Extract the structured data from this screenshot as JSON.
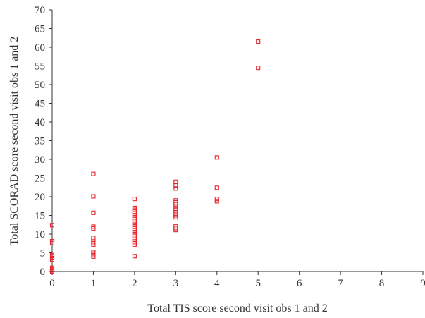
{
  "chart_data": {
    "type": "scatter",
    "title": "",
    "xlabel": "Total TIS score second visit obs 1 and 2",
    "ylabel": "Total SCORAD score second visit obs 1 and 2",
    "xlim": [
      0,
      9
    ],
    "ylim": [
      0,
      70
    ],
    "x_ticks": [
      "0",
      "1",
      "2",
      "3",
      "4",
      "5",
      "6",
      "7",
      "8",
      "9"
    ],
    "y_ticks": [
      "0",
      "5",
      "10",
      "15",
      "20",
      "25",
      "30",
      "35",
      "40",
      "45",
      "50",
      "55",
      "60",
      "65",
      "70"
    ],
    "grid": false,
    "legend": "none",
    "marker": "hollow-square",
    "marker_color": "#e8232a",
    "series": [
      {
        "points": [
          [
            0,
            0
          ],
          [
            0,
            0.3
          ],
          [
            0,
            0.6
          ],
          [
            0,
            1
          ],
          [
            0,
            3.2
          ],
          [
            0,
            3.6
          ],
          [
            0,
            4.1
          ],
          [
            0,
            4.4
          ],
          [
            0,
            7.6
          ],
          [
            0,
            8.1
          ],
          [
            0,
            12.4
          ],
          [
            1,
            4
          ],
          [
            1,
            4.4
          ],
          [
            1,
            4.8
          ],
          [
            1,
            5.2
          ],
          [
            1,
            7.2
          ],
          [
            1,
            7.6
          ],
          [
            1,
            8
          ],
          [
            1,
            8.5
          ],
          [
            1,
            9
          ],
          [
            1,
            11.5
          ],
          [
            1,
            12
          ],
          [
            1,
            15.7
          ],
          [
            1,
            20.1
          ],
          [
            1,
            26.1
          ],
          [
            2,
            4.1
          ],
          [
            2,
            7.2
          ],
          [
            2,
            7.6
          ],
          [
            2,
            8
          ],
          [
            2,
            8.5
          ],
          [
            2,
            9
          ],
          [
            2,
            9.5
          ],
          [
            2,
            10
          ],
          [
            2,
            10.5
          ],
          [
            2,
            11
          ],
          [
            2,
            11.5
          ],
          [
            2,
            12
          ],
          [
            2,
            12.5
          ],
          [
            2,
            13
          ],
          [
            2,
            13.5
          ],
          [
            2,
            14
          ],
          [
            2,
            14.5
          ],
          [
            2,
            15
          ],
          [
            2,
            15.5
          ],
          [
            2,
            16
          ],
          [
            2,
            16.5
          ],
          [
            2,
            17
          ],
          [
            2,
            19.4
          ],
          [
            3,
            11.1
          ],
          [
            3,
            11.6
          ],
          [
            3,
            12.1
          ],
          [
            3,
            14.5
          ],
          [
            3,
            15
          ],
          [
            3,
            15.4
          ],
          [
            3,
            15.8
          ],
          [
            3,
            16.3
          ],
          [
            3,
            16.8
          ],
          [
            3,
            17.5
          ],
          [
            3,
            18
          ],
          [
            3,
            18.5
          ],
          [
            3,
            19
          ],
          [
            3,
            22.2
          ],
          [
            3,
            23
          ],
          [
            3,
            24
          ],
          [
            4,
            18.8
          ],
          [
            4,
            19.4
          ],
          [
            4,
            22.4
          ],
          [
            4,
            30.5
          ],
          [
            5,
            54.5
          ],
          [
            5,
            61.5
          ]
        ]
      }
    ]
  }
}
